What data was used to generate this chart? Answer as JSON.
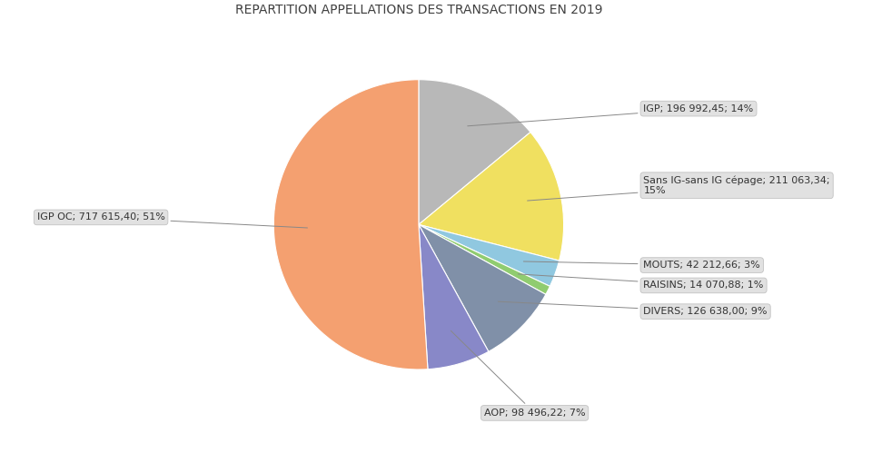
{
  "title": "REPARTITION APPELLATIONS DES TRANSACTIONS EN 2019",
  "slices": [
    {
      "label": "IGP",
      "value": 196992.45,
      "pct": 14,
      "color": "#B8B8B8",
      "label_str": "IGP; 196 992,45; 14%",
      "multiline": false
    },
    {
      "label": "Sans IG-sans IG cépage",
      "value": 211063.34,
      "pct": 15,
      "color": "#F0E060",
      "label_str": "Sans IG-sans IG cépage; 211 063,34;\n15%",
      "multiline": true
    },
    {
      "label": "MOUTS",
      "value": 42212.66,
      "pct": 3,
      "color": "#90C8E0",
      "label_str": "MOUTS; 42 212,66; 3%",
      "multiline": false
    },
    {
      "label": "RAISINS",
      "value": 14070.88,
      "pct": 1,
      "color": "#90CC70",
      "label_str": "RAISINS; 14 070,88; 1%",
      "multiline": false
    },
    {
      "label": "DIVERS",
      "value": 126638.0,
      "pct": 9,
      "color": "#8090A8",
      "label_str": "DIVERS; 126 638,00; 9%",
      "multiline": false
    },
    {
      "label": "AOP",
      "value": 98496.22,
      "pct": 7,
      "color": "#8888C8",
      "label_str": "AOP; 98 496,22; 7%",
      "multiline": false
    },
    {
      "label": "IGP OC",
      "value": 717615.4,
      "pct": 51,
      "color": "#F4A070",
      "label_str": "IGP OC; 717 615,40; 51%",
      "multiline": false
    }
  ],
  "title_fontsize": 10,
  "label_fontsize": 8,
  "background_color": "#ffffff",
  "label_configs": [
    {
      "xtext": 1.55,
      "ytext": 0.8,
      "ha": "left"
    },
    {
      "xtext": 1.55,
      "ytext": 0.27,
      "ha": "left"
    },
    {
      "xtext": 1.55,
      "ytext": -0.28,
      "ha": "left"
    },
    {
      "xtext": 1.55,
      "ytext": -0.42,
      "ha": "left"
    },
    {
      "xtext": 1.55,
      "ytext": -0.6,
      "ha": "left"
    },
    {
      "xtext": 0.45,
      "ytext": -1.3,
      "ha": "left"
    },
    {
      "xtext": -1.75,
      "ytext": 0.05,
      "ha": "right"
    }
  ]
}
